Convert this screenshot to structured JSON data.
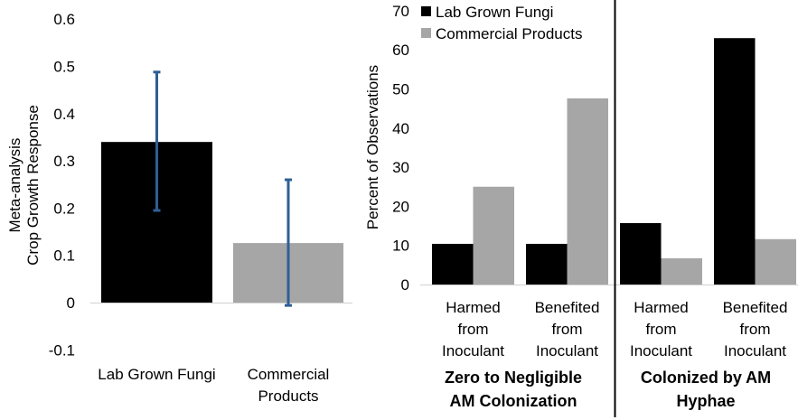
{
  "colors": {
    "series_lab": "#000000",
    "series_commercial": "#a6a6a6",
    "error_bar": "#2f5f95",
    "axis_line": "#d0d0d0",
    "separator": "#000000"
  },
  "chart_data": [
    {
      "type": "bar",
      "title": "",
      "xlabel": "",
      "ylabel": [
        "Meta-analysis",
        "Crop Growth Response"
      ],
      "ylim": [
        -0.1,
        0.6
      ],
      "yticks": [
        "-0.1",
        "0",
        "0.1",
        "0.2",
        "0.3",
        "0.4",
        "0.5",
        "0.6"
      ],
      "grid": false,
      "categories": [
        [
          "Lab Grown Fungi"
        ],
        [
          "Commercial",
          "Products"
        ]
      ],
      "values": [
        0.34,
        0.126
      ],
      "error_bars": [
        {
          "low": 0.195,
          "high": 0.488
        },
        {
          "low": -0.006,
          "high": 0.26
        }
      ],
      "bar_colors": [
        "#000000",
        "#a6a6a6"
      ]
    },
    {
      "type": "bar",
      "title": "",
      "xlabel": "",
      "ylabel": "Percent of Observations",
      "ylim": [
        0,
        70
      ],
      "yticks": [
        "0",
        "10",
        "20",
        "30",
        "40",
        "50",
        "60",
        "70"
      ],
      "grid": false,
      "legend_position": "top-left",
      "legend": [
        "Lab Grown Fungi",
        "Commercial Products"
      ],
      "categories": [
        [
          "Harmed",
          "from",
          "Inoculant"
        ],
        [
          "Benefited",
          "from",
          "Inoculant"
        ],
        [
          "Harmed",
          "from",
          "Inoculant"
        ],
        [
          "Benefited",
          "from",
          "Inoculant"
        ]
      ],
      "groups": [
        {
          "label": [
            "Zero to Negligible",
            "AM Colonization"
          ],
          "categories": [
            0,
            1
          ]
        },
        {
          "label": [
            "Colonized by AM",
            "Hyphae"
          ],
          "categories": [
            2,
            3
          ]
        }
      ],
      "series": [
        {
          "name": "Lab Grown Fungi",
          "values": [
            10.4,
            10.4,
            15.7,
            63.0
          ]
        },
        {
          "name": "Commercial Products",
          "values": [
            25.0,
            47.6,
            6.7,
            11.6
          ]
        }
      ]
    }
  ]
}
